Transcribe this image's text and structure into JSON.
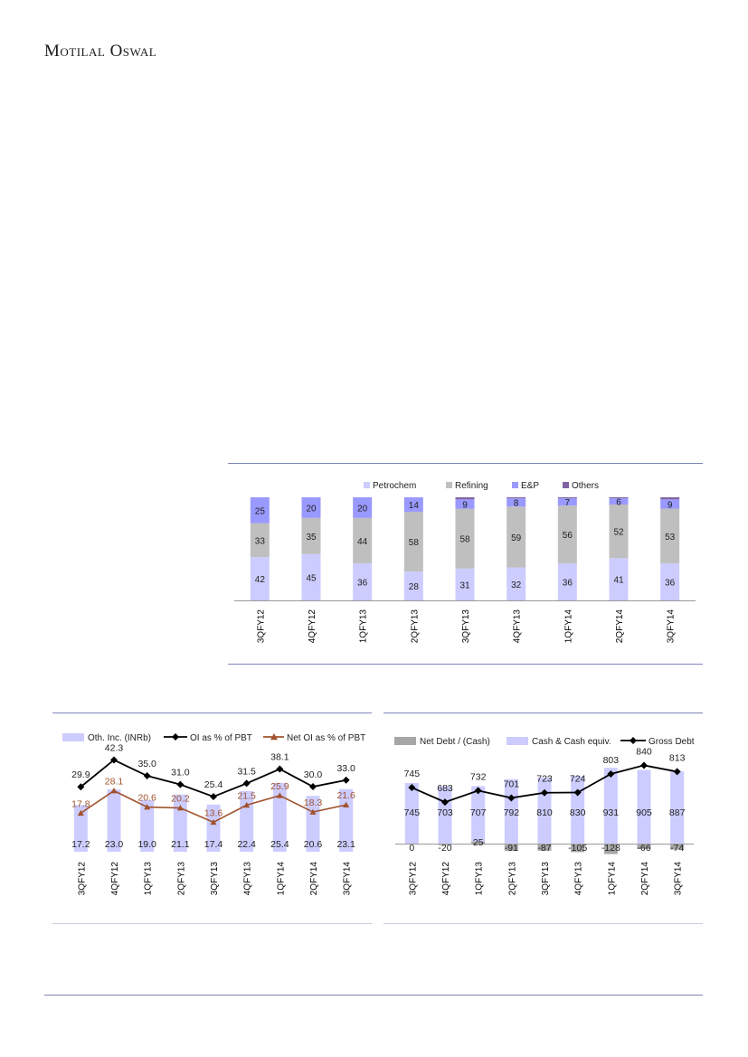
{
  "header": {
    "brand": "Motilal Oswal"
  },
  "colors": {
    "rule": "#7f86b8",
    "petrochem": "#ccccff",
    "refining": "#bfbfbf",
    "ep": "#9999ff",
    "others": "#8064a2",
    "oth_inc": "#ccccff",
    "oi_line": "#000000",
    "net_oi_line": "#a0522d",
    "net_debt": "#a6a6a6",
    "cash": "#ccccff"
  },
  "chart_data": [
    {
      "id": "segment_mix",
      "type": "bar",
      "stacked": true,
      "categories": [
        "3QFY12",
        "4QFY12",
        "1QFY13",
        "2QFY13",
        "3QFY13",
        "4QFY13",
        "1QFY14",
        "2QFY14",
        "3QFY14"
      ],
      "series": [
        {
          "name": "Petrochem",
          "values": [
            42,
            45,
            36,
            28,
            31,
            32,
            36,
            41,
            36
          ]
        },
        {
          "name": "Refining",
          "values": [
            33,
            35,
            44,
            58,
            58,
            59,
            56,
            52,
            53
          ]
        },
        {
          "name": "E&P",
          "values": [
            25,
            20,
            20,
            14,
            9,
            8,
            7,
            6,
            9
          ]
        },
        {
          "name": "Others",
          "values": [
            0,
            0,
            0,
            0,
            2,
            1,
            1,
            1,
            2
          ]
        }
      ],
      "ylim": [
        0,
        100
      ],
      "legend": "top"
    },
    {
      "id": "other_income",
      "type": "bar+line",
      "categories": [
        "3QFY12",
        "4QFY12",
        "1QFY13",
        "2QFY13",
        "3QFY13",
        "4QFY13",
        "1QFY14",
        "2QFY14",
        "3QFY14"
      ],
      "series": [
        {
          "name": "Oth. Inc. (INRb)",
          "kind": "bar",
          "values": [
            17.2,
            23.0,
            19.0,
            21.1,
            17.4,
            22.4,
            25.4,
            20.6,
            23.1
          ],
          "labels": [
            "17.2",
            "23.0",
            "19.0",
            "21.1",
            "17.4",
            "22.4",
            "25.4",
            "20.6",
            "23.1"
          ]
        },
        {
          "name": "OI as % of PBT",
          "kind": "line",
          "values": [
            29.9,
            42.3,
            35.0,
            31.0,
            25.4,
            31.5,
            38.1,
            30.0,
            33.0
          ],
          "labels": [
            "29.9",
            "42.3",
            "35.0",
            "31.0",
            "25.4",
            "31.5",
            "38.1",
            "30.0",
            "33.0"
          ]
        },
        {
          "name": "Net OI as % of PBT",
          "kind": "line",
          "values": [
            17.8,
            28.1,
            20.6,
            20.2,
            13.6,
            21.5,
            25.9,
            18.3,
            21.6
          ],
          "labels": [
            "17.8",
            "28.1",
            "20.6",
            "20.2",
            "13.6",
            "21.5",
            "25.9",
            "18.3",
            "21.6"
          ]
        }
      ],
      "legend": "top"
    },
    {
      "id": "debt",
      "type": "bar+line",
      "categories": [
        "3QFY12",
        "4QFY12",
        "1QFY13",
        "2QFY13",
        "3QFY13",
        "4QFY13",
        "1QFY14",
        "2QFY14",
        "3QFY14"
      ],
      "series": [
        {
          "name": "Net Debt / (Cash)",
          "kind": "bar",
          "values": [
            0,
            -20,
            25,
            -91,
            -87,
            -105,
            -128,
            -66,
            -74
          ],
          "labels": [
            "0",
            "-20",
            "25",
            "-91",
            "-87",
            "-105",
            "-128",
            "-66",
            "-74"
          ]
        },
        {
          "name": "Cash & Cash equiv.",
          "kind": "bar",
          "values": [
            745,
            703,
            707,
            792,
            810,
            830,
            931,
            905,
            887
          ],
          "labels": [
            "745",
            "703",
            "707",
            "792",
            "810",
            "830",
            "931",
            "905",
            "887"
          ]
        },
        {
          "name": "Gross Debt",
          "kind": "line",
          "values": [
            745,
            683,
            732,
            701,
            723,
            724,
            803,
            840,
            813
          ],
          "labels": [
            "745",
            "683",
            "732",
            "701",
            "723",
            "724",
            "803",
            "840",
            "813"
          ]
        }
      ],
      "legend": "top"
    }
  ]
}
